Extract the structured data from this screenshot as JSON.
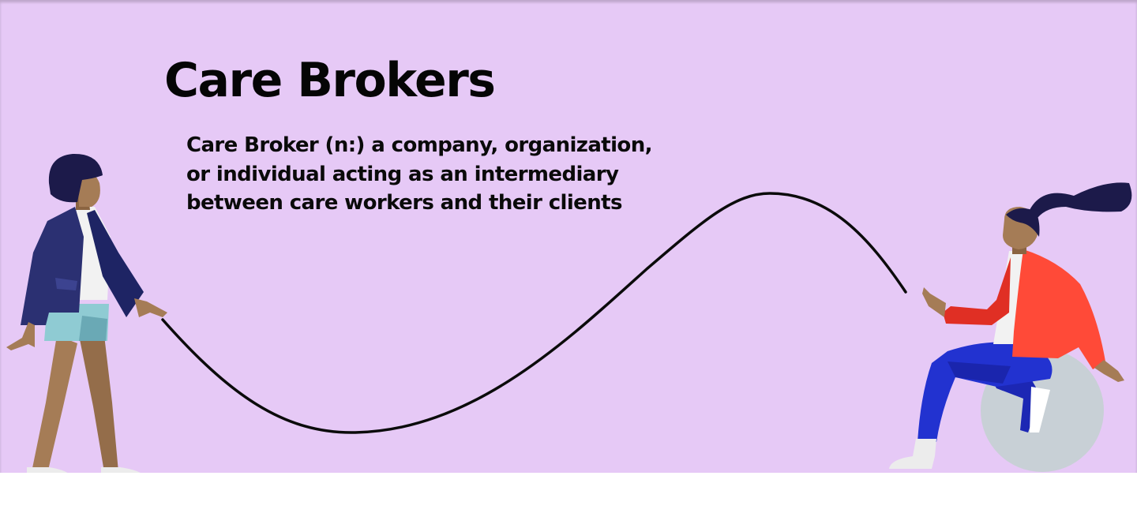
{
  "slide": {
    "title": "Care Brokers",
    "definition_lines": [
      "Care Broker (n:) a company, organization,",
      "or individual acting as an intermediary",
      "between care workers and their clients"
    ]
  },
  "illustration": {
    "left_figure": "person-standing-holding-rope-illustration",
    "right_figure": "person-sitting-on-ball-illustration",
    "rope": "rope-wave-icon"
  },
  "colors": {
    "background": "#e6c9f6",
    "text": "#050505",
    "navy": "#2b3072",
    "red_jacket": "#ff4a38",
    "blue_pants": "#2232d0",
    "skin": "#a57c56",
    "ball": "#c8d0d6"
  }
}
